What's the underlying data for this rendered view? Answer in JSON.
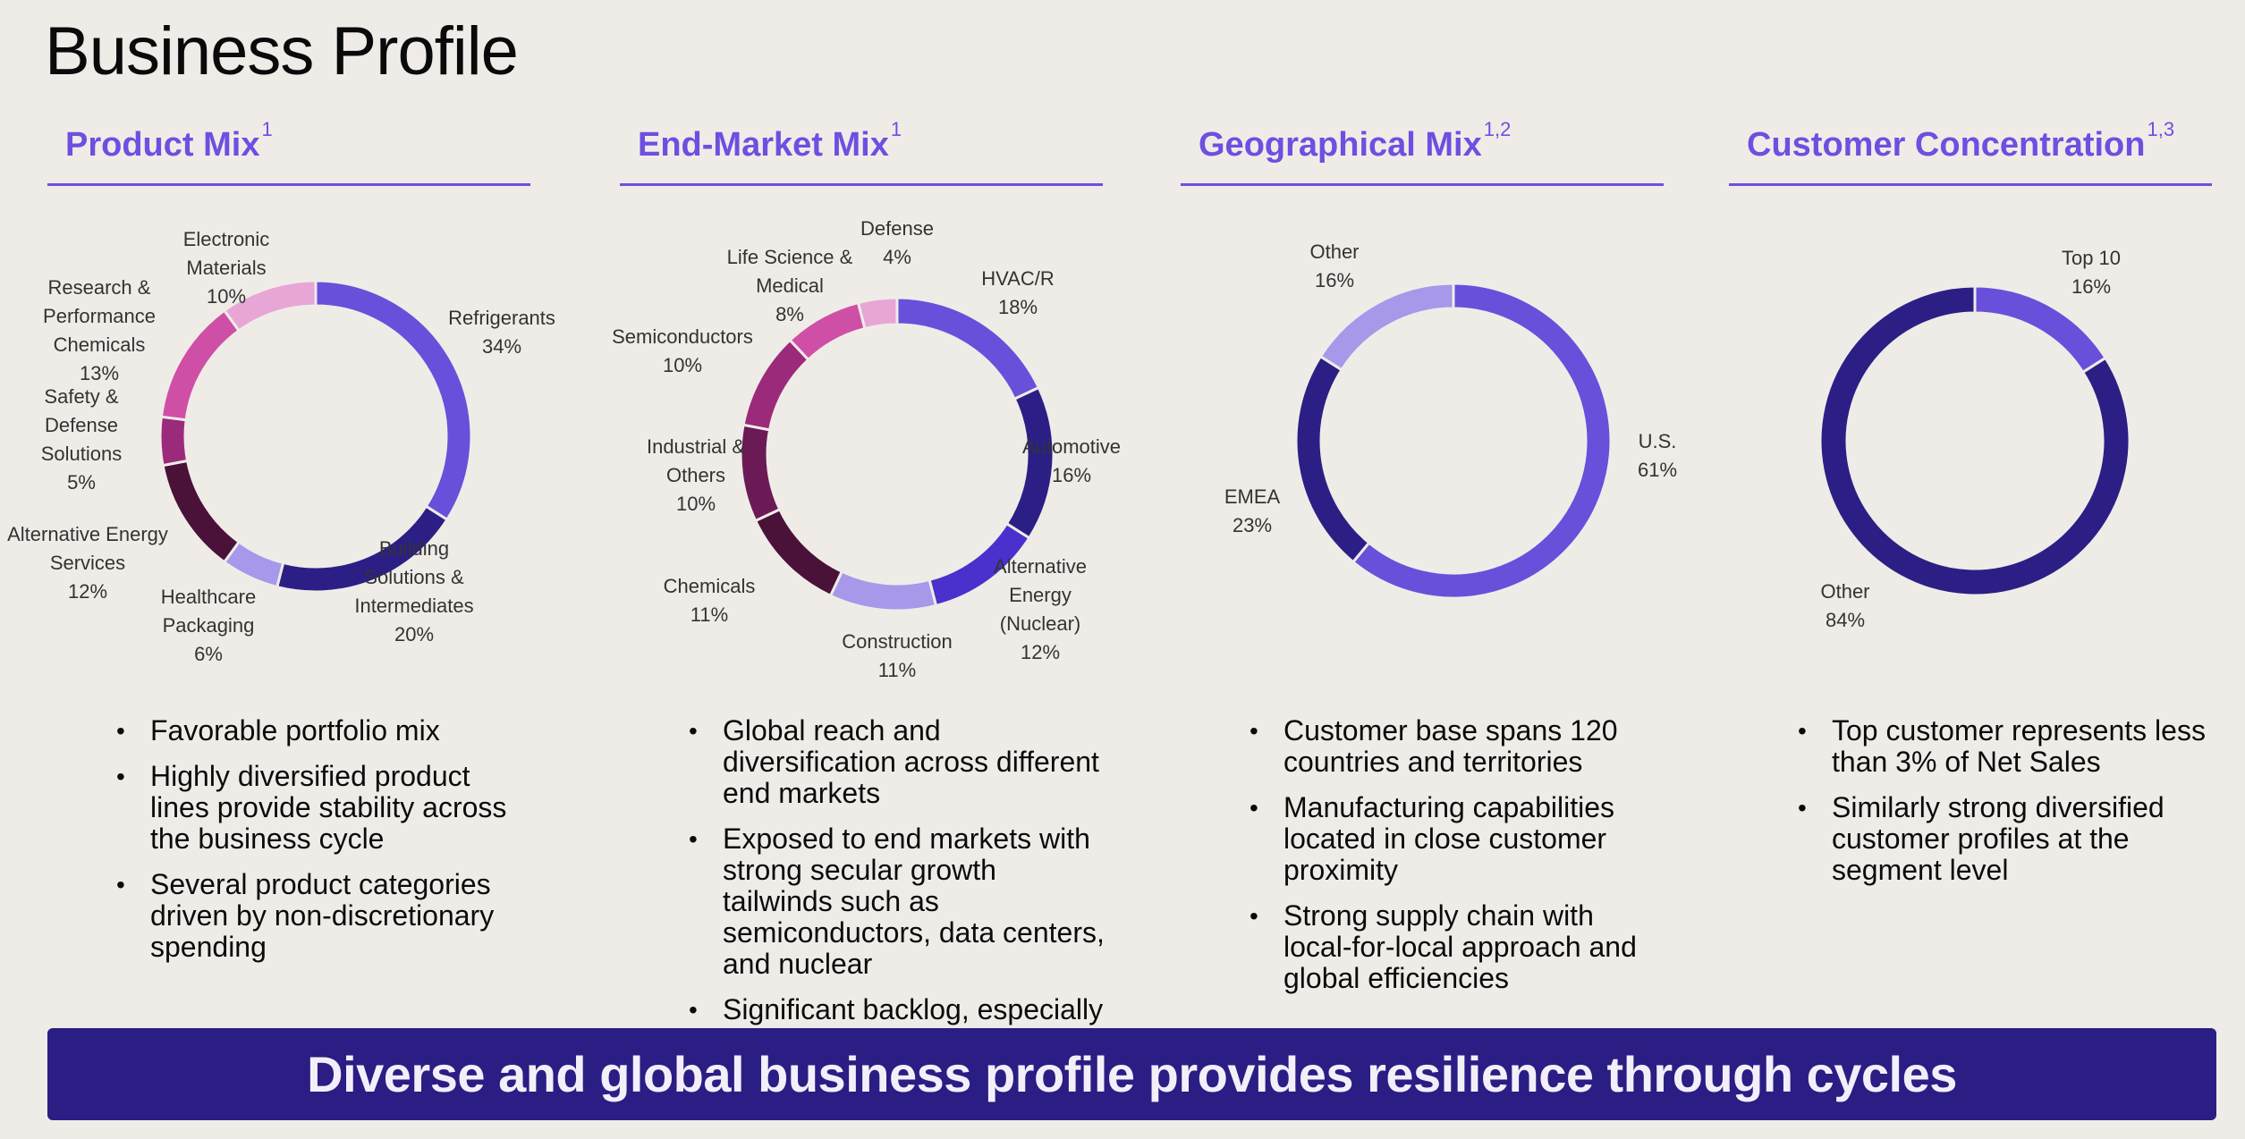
{
  "page_title": "Business Profile",
  "banner": "Diverse and global business profile provides resilience through cycles",
  "columns": [
    {
      "heading": "Product Mix",
      "footnote": "1",
      "bullets": [
        "Favorable portfolio mix",
        "Highly diversified product lines provide stability across the business cycle",
        "Several product categories driven by non-discretionary spending"
      ]
    },
    {
      "heading": "End-Market Mix",
      "footnote": "1",
      "bullets": [
        "Global reach and diversification across different end markets",
        "Exposed to end markets with strong secular growth tailwinds such as semiconductors, data centers, and nuclear",
        "Significant backlog, especially in nuclear energy"
      ]
    },
    {
      "heading": "Geographical Mix",
      "footnote": "1,2",
      "bullets": [
        "Customer base spans 120 countries and territories",
        "Manufacturing capabilities located in close customer proximity",
        "Strong supply chain with local-for-local approach and global efficiencies"
      ]
    },
    {
      "heading": "Customer Concentration",
      "footnote": "1,3",
      "bullets": [
        "Top customer represents less than 3% of Net Sales",
        "Similarly strong diversified customer profiles at the segment level"
      ]
    }
  ],
  "chart_data": [
    {
      "type": "pie",
      "title": "Product Mix",
      "segments": [
        {
          "label": [
            "Refrigerants"
          ],
          "value": 34,
          "display": "34%",
          "color": "#6a4fdb"
        },
        {
          "label": [
            "Building",
            "Solutions &",
            "Intermediates"
          ],
          "value": 20,
          "display": "20%",
          "color": "#2b1f86"
        },
        {
          "label": [
            "Healthcare",
            "Packaging"
          ],
          "value": 6,
          "display": "6%",
          "color": "#a798ea"
        },
        {
          "label": [
            "Alternative Energy",
            "Services"
          ],
          "value": 12,
          "display": "12%",
          "color": "#4a1238"
        },
        {
          "label": [
            "Safety &",
            "Defense",
            "Solutions"
          ],
          "value": 5,
          "display": "5%",
          "color": "#9c2a7a"
        },
        {
          "label": [
            "Research &",
            "Performance",
            "Chemicals"
          ],
          "value": 13,
          "display": "13%",
          "color": "#d04fa6"
        },
        {
          "label": [
            "Electronic",
            "Materials"
          ],
          "value": 10,
          "display": "10%",
          "color": "#e8a6d6"
        }
      ]
    },
    {
      "type": "pie",
      "title": "End-Market Mix",
      "segments": [
        {
          "label": [
            "HVAC/R"
          ],
          "value": 18,
          "display": "18%",
          "color": "#6a4fdb"
        },
        {
          "label": [
            "Automotive"
          ],
          "value": 16,
          "display": "16%",
          "color": "#2b1f86"
        },
        {
          "label": [
            "Alternative",
            "Energy",
            "(Nuclear)"
          ],
          "value": 12,
          "display": "12%",
          "color": "#4a30cc"
        },
        {
          "label": [
            "Construction"
          ],
          "value": 11,
          "display": "11%",
          "color": "#a798ea"
        },
        {
          "label": [
            "Chemicals"
          ],
          "value": 11,
          "display": "11%",
          "color": "#4a1238"
        },
        {
          "label": [
            "Industrial &",
            "Others"
          ],
          "value": 10,
          "display": "10%",
          "color": "#6b1a55"
        },
        {
          "label": [
            "Semiconductors"
          ],
          "value": 10,
          "display": "10%",
          "color": "#9c2a7a"
        },
        {
          "label": [
            "Life Science &",
            "Medical"
          ],
          "value": 8,
          "display": "8%",
          "color": "#d04fa6"
        },
        {
          "label": [
            "Defense"
          ],
          "value": 4,
          "display": "4%",
          "color": "#e8a6d6"
        }
      ]
    },
    {
      "type": "pie",
      "title": "Geographical Mix",
      "segments": [
        {
          "label": [
            "U.S."
          ],
          "value": 61,
          "display": "61%",
          "color": "#6a4fdb"
        },
        {
          "label": [
            "EMEA"
          ],
          "value": 23,
          "display": "23%",
          "color": "#2b1f86"
        },
        {
          "label": [
            "Other"
          ],
          "value": 16,
          "display": "16%",
          "color": "#a798ea"
        }
      ]
    },
    {
      "type": "pie",
      "title": "Customer Concentration",
      "segments": [
        {
          "label": [
            "Top 10"
          ],
          "value": 16,
          "display": "16%",
          "color": "#6a4fdb"
        },
        {
          "label": [
            "Other"
          ],
          "value": 84,
          "display": "84%",
          "color": "#2b1f86"
        }
      ]
    }
  ]
}
